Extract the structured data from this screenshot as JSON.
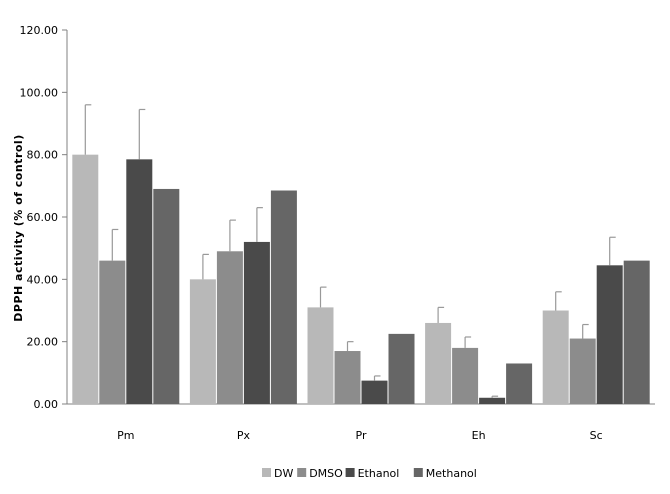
{
  "chart_data": {
    "type": "bar",
    "title": "",
    "xlabel": "",
    "ylabel": "DPPH activity (% of control)",
    "ylim": [
      0,
      120
    ],
    "yticks": [
      "0.00",
      "20.00",
      "40.00",
      "60.00",
      "80.00",
      "100.00",
      "120.00"
    ],
    "ytick_values": [
      0,
      20,
      40,
      60,
      80,
      100,
      120
    ],
    "grid": false,
    "legend_position": "bottom",
    "categories": [
      "Pm",
      "Px",
      "Pr",
      "Eh",
      "Sc"
    ],
    "series": [
      {
        "name": "DW",
        "color": "#b8b8b8",
        "values": [
          80,
          40,
          31,
          26,
          30
        ],
        "errors": [
          16,
          8,
          6.5,
          5,
          6
        ]
      },
      {
        "name": "DMSO",
        "color": "#8c8c8c",
        "values": [
          46,
          49,
          17,
          18,
          21
        ],
        "errors": [
          10,
          10,
          3,
          3.5,
          4.5
        ]
      },
      {
        "name": "Ethanol",
        "color": "#4a4a4a",
        "values": [
          78.5,
          52,
          7.5,
          2,
          44.5
        ],
        "errors": [
          16,
          11,
          1.5,
          0.5,
          9
        ]
      },
      {
        "name": "Methanol",
        "color": "#666666",
        "values": [
          69,
          68.5,
          22.5,
          13,
          46
        ],
        "errors": [
          0,
          0,
          0,
          0,
          0
        ]
      }
    ]
  }
}
